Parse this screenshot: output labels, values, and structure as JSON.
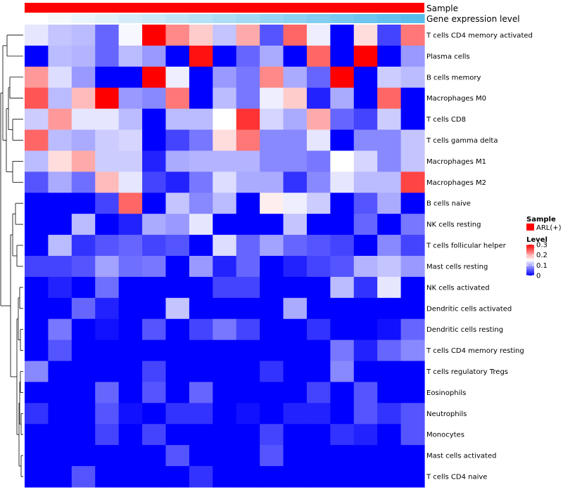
{
  "chart_data": {
    "type": "heatmap",
    "title": "",
    "xlabel": "",
    "ylabel": "",
    "value_range": [
      0,
      0.3
    ],
    "column_count": 17,
    "color_scale": [
      {
        "value": 0,
        "color": "#0000ff"
      },
      {
        "value": 0.15,
        "color": "#ffffff"
      },
      {
        "value": 0.3,
        "color": "#ff0000"
      }
    ],
    "annotations": [
      {
        "name": "Sample",
        "color": "#ff0000"
      },
      {
        "name": "Gene expression level",
        "colors": [
          "#ffffff",
          "#f4f9fc",
          "#eaf5fb",
          "#e0f1fa",
          "#d5edf9",
          "#cbe9f8",
          "#c1e5f7",
          "#b6e1f6",
          "#acddf5",
          "#a2d9f4",
          "#97d5f3",
          "#8dd1f2",
          "#83cdf1",
          "#78c9f0",
          "#6ec5ef",
          "#64c1ee",
          "#59bdec"
        ]
      }
    ],
    "rows": [
      {
        "name": "T cells CD4 memory activated",
        "values": [
          0.135,
          0.115,
          0.11,
          0.06,
          0.145,
          0.3,
          0.22,
          0.18,
          0.115,
          0.2,
          0.05,
          0.24,
          0.14,
          0.0,
          0.17,
          0.04,
          0.23
        ]
      },
      {
        "name": "Plasma cells",
        "values": [
          0.0,
          0.11,
          0.105,
          0.06,
          0.11,
          0.09,
          0.0,
          0.29,
          0.0,
          0.06,
          0.1,
          0.0,
          0.24,
          0.0,
          0.3,
          0.0,
          0.09
        ]
      },
      {
        "name": "B cells memory",
        "values": [
          0.21,
          0.13,
          0.09,
          0.0,
          0.0,
          0.3,
          0.14,
          0.0,
          0.09,
          0.07,
          0.22,
          0.1,
          0.06,
          0.3,
          0.0,
          0.12,
          0.11
        ]
      },
      {
        "name": "Macrophages M0",
        "values": [
          0.25,
          0.11,
          0.19,
          0.3,
          0.09,
          0.08,
          0.23,
          0.0,
          0.11,
          0.07,
          0.14,
          0.18,
          0.02,
          0.1,
          0.0,
          0.24,
          0.0
        ]
      },
      {
        "name": "T cells CD8",
        "values": [
          0.12,
          0.21,
          0.135,
          0.135,
          0.11,
          0.0,
          0.11,
          0.11,
          0.15,
          0.27,
          0.125,
          0.1,
          0.2,
          0.06,
          0.04,
          0.12,
          0.0
        ]
      },
      {
        "name": "T cells gamma delta",
        "values": [
          0.24,
          0.11,
          0.1,
          0.12,
          0.125,
          0.0,
          0.04,
          0.07,
          0.17,
          0.23,
          0.08,
          0.08,
          0.135,
          0.0,
          0.08,
          0.08,
          0.115
        ]
      },
      {
        "name": "Macrophages M1",
        "values": [
          0.11,
          0.17,
          0.2,
          0.12,
          0.12,
          0.02,
          0.1,
          0.105,
          0.105,
          0.105,
          0.08,
          0.08,
          0.07,
          0.15,
          0.125,
          0.08,
          0.115
        ]
      },
      {
        "name": "Macrophages M2",
        "values": [
          0.05,
          0.1,
          0.065,
          0.19,
          0.135,
          0.04,
          0.02,
          0.07,
          0.13,
          0.1,
          0.1,
          0.03,
          0.08,
          0.135,
          0.11,
          0.11,
          0.26
        ]
      },
      {
        "name": "B cells naive",
        "values": [
          0.0,
          0.0,
          0.0,
          0.04,
          0.24,
          0.0,
          0.115,
          0.08,
          0.11,
          0.0,
          0.16,
          0.14,
          0.12,
          0.0,
          0.05,
          0.1,
          0.0
        ]
      },
      {
        "name": "NK cells resting",
        "values": [
          0.0,
          0.0,
          0.11,
          0.0,
          0.02,
          0.1,
          0.09,
          0.135,
          0.0,
          0.0,
          0.0,
          0.115,
          0.0,
          0.0,
          0.06,
          0.0,
          0.07
        ]
      },
      {
        "name": "T cells follicular helper",
        "values": [
          0.0,
          0.11,
          0.03,
          0.05,
          0.06,
          0.04,
          0.05,
          0.0,
          0.13,
          0.06,
          0.095,
          0.06,
          0.05,
          0.04,
          0.0,
          0.08,
          0.04
        ]
      },
      {
        "name": "Mast cells resting",
        "values": [
          0.04,
          0.04,
          0.05,
          0.095,
          0.065,
          0.07,
          0.0,
          0.09,
          0.02,
          0.06,
          0.0,
          0.02,
          0.04,
          0.05,
          0.105,
          0.115,
          0.09
        ]
      },
      {
        "name": "NK cells activated",
        "values": [
          0.0,
          0.02,
          0.0,
          0.065,
          0.0,
          0.0,
          0.0,
          0.0,
          0.04,
          0.04,
          0.0,
          0.0,
          0.0,
          0.11,
          0.03,
          0.135,
          0.0
        ]
      },
      {
        "name": "Dendritic cells activated",
        "values": [
          0.0,
          0.0,
          0.06,
          0.02,
          0.0,
          0.0,
          0.115,
          0.0,
          0.0,
          0.0,
          0.0,
          0.1,
          0.0,
          0.0,
          0.0,
          0.0,
          0.0
        ]
      },
      {
        "name": "Dendritic cells resting",
        "values": [
          0.0,
          0.07,
          0.0,
          0.01,
          0.0,
          0.05,
          0.0,
          0.04,
          0.07,
          0.04,
          0.0,
          0.0,
          0.03,
          0.0,
          0.0,
          0.01,
          0.06
        ]
      },
      {
        "name": "T cells CD4 memory resting",
        "values": [
          0.0,
          0.05,
          0.0,
          0.0,
          0.0,
          0.0,
          0.0,
          0.0,
          0.0,
          0.0,
          0.0,
          0.0,
          0.0,
          0.07,
          0.02,
          0.06,
          0.08
        ]
      },
      {
        "name": "T cells regulatory  Tregs",
        "values": [
          0.08,
          0.0,
          0.0,
          0.0,
          0.0,
          0.04,
          0.0,
          0.0,
          0.0,
          0.0,
          0.03,
          0.0,
          0.0,
          0.08,
          0.0,
          0.0,
          0.0
        ]
      },
      {
        "name": "Eosinophils",
        "values": [
          0.0,
          0.0,
          0.0,
          0.06,
          0.0,
          0.05,
          0.0,
          0.06,
          0.0,
          0.0,
          0.0,
          0.0,
          0.04,
          0.0,
          0.05,
          0.0,
          0.0
        ]
      },
      {
        "name": "Neutrophils",
        "values": [
          0.03,
          0.0,
          0.0,
          0.05,
          0.01,
          0.0,
          0.03,
          0.03,
          0.0,
          0.01,
          0.0,
          0.02,
          0.02,
          0.0,
          0.05,
          0.03,
          0.05
        ]
      },
      {
        "name": "Monocytes",
        "values": [
          0.0,
          0.0,
          0.0,
          0.04,
          0.0,
          0.04,
          0.0,
          0.0,
          0.0,
          0.0,
          0.04,
          0.0,
          0.0,
          0.03,
          0.02,
          0.0,
          0.05
        ]
      },
      {
        "name": "Mast cells activated",
        "values": [
          0.0,
          0.0,
          0.0,
          0.0,
          0.0,
          0.0,
          0.05,
          0.0,
          0.0,
          0.0,
          0.05,
          0.0,
          0.0,
          0.0,
          0.0,
          0.0,
          0.0
        ]
      },
      {
        "name": "T cells CD4 naive",
        "values": [
          0.0,
          0.0,
          0.05,
          0.0,
          0.0,
          0.0,
          0.0,
          0.03,
          0.0,
          0.0,
          0.0,
          0.0,
          0.0,
          0.0,
          0.0,
          0.0,
          0.0
        ]
      }
    ],
    "legend": {
      "position": "right",
      "sample_title": "Sample",
      "sample_entry": "ARL(+)",
      "sample_color": "#ff0000",
      "level_title": "Level",
      "ticks": [
        {
          "value": 0.3,
          "label": "0.3"
        },
        {
          "value": 0.2,
          "label": "0.2"
        },
        {
          "value": 0.1,
          "label": "0.1"
        },
        {
          "value": 0,
          "label": "0"
        }
      ]
    }
  }
}
